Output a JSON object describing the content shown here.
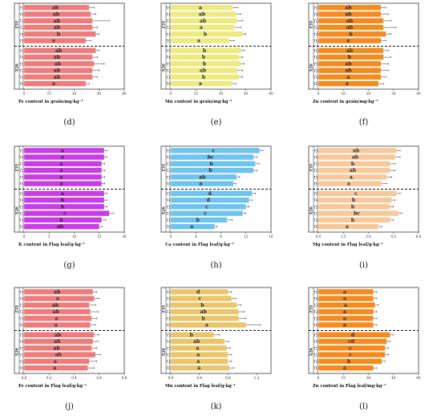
{
  "chart_data": [
    {
      "type": "bar",
      "panel_label": "(d)",
      "xlabel": "Fe content in grain/mg·kg⁻¹",
      "color": "#f07b7b",
      "xlim": [
        0,
        60
      ],
      "xticks": [
        0,
        15,
        30,
        45,
        60
      ],
      "groups": [
        {
          "name": "Z35",
          "treatments": [
            "T5",
            "T4",
            "T3",
            "T2",
            "T1",
            "T0"
          ],
          "values": [
            39,
            40,
            41,
            41,
            43,
            37
          ],
          "errors": [
            3,
            3,
            10,
            3,
            2,
            3
          ],
          "letters": [
            "ab",
            "ab",
            "ab",
            "ab",
            "b",
            "a"
          ]
        },
        {
          "name": "X26",
          "treatments": [
            "T5",
            "T4",
            "T3",
            "T2",
            "T1",
            "T0"
          ],
          "values": [
            43,
            41,
            42,
            41,
            41,
            37
          ],
          "errors": [
            2,
            3,
            6,
            4,
            3,
            2
          ],
          "letters": [
            "ab",
            "ab",
            "ab",
            "ab",
            "ab",
            "a"
          ]
        }
      ]
    },
    {
      "type": "bar",
      "panel_label": "(e)",
      "xlabel": "Mn content in grain/mg·kg⁻¹",
      "color": "#eeea80",
      "xlim": [
        0,
        60
      ],
      "xticks": [
        0,
        15,
        30,
        45,
        60
      ],
      "groups": [
        {
          "name": "Z35",
          "treatments": [
            "T5",
            "T4",
            "T3",
            "T2",
            "T1",
            "T0"
          ],
          "values": [
            37,
            39,
            40,
            38,
            43,
            35
          ],
          "errors": [
            3,
            3,
            3,
            4,
            2,
            3
          ],
          "letters": [
            "a",
            "ab",
            "ab",
            "a",
            "b",
            "a"
          ]
        },
        {
          "name": "X26",
          "treatments": [
            "T5",
            "T4",
            "T3",
            "T2",
            "T1",
            "T0"
          ],
          "values": [
            42,
            41,
            42,
            40,
            41,
            37
          ],
          "errors": [
            2,
            2,
            2,
            3,
            2,
            2
          ],
          "letters": [
            "b",
            "b",
            "b",
            "ab",
            "b",
            "a"
          ]
        }
      ]
    },
    {
      "type": "bar",
      "panel_label": "(f)",
      "xlabel": "Zn content in grain/mg·kg⁻¹",
      "color": "#f58b1e",
      "xlim": [
        0,
        40
      ],
      "xticks": [
        0,
        10,
        20,
        30,
        40
      ],
      "groups": [
        {
          "name": "Z35",
          "treatments": [
            "T5",
            "T4",
            "T3",
            "T2",
            "T1",
            "T0"
          ],
          "values": [
            25,
            25,
            26,
            26,
            27,
            25
          ],
          "errors": [
            2,
            3,
            3,
            5,
            2,
            2
          ],
          "letters": [
            "ab",
            "ab",
            "ab",
            "ab",
            "b",
            "a"
          ]
        },
        {
          "name": "X26",
          "treatments": [
            "T5",
            "T4",
            "T3",
            "T2",
            "T1",
            "T0"
          ],
          "values": [
            26,
            26,
            25,
            25,
            25,
            24
          ],
          "errors": [
            2,
            3,
            3,
            3,
            2,
            2
          ],
          "letters": [
            "ab",
            "b",
            "ab",
            "ab",
            "a",
            "a"
          ]
        }
      ]
    },
    {
      "type": "bar",
      "panel_label": "(g)",
      "xlabel": "K content in Flag leaf/g·kg⁻¹",
      "color": "#c83de6",
      "xlim": [
        0,
        20
      ],
      "xticks": [
        0,
        5,
        10,
        15,
        20
      ],
      "groups": [
        {
          "name": "Z35",
          "treatments": [
            "T5",
            "T4",
            "T3",
            "T2",
            "T1",
            "T0"
          ],
          "values": [
            16,
            16,
            15.5,
            15.5,
            15.5,
            15.5
          ],
          "errors": [
            0.6,
            0.6,
            0.6,
            0.6,
            0.6,
            0.6
          ],
          "letters": [
            "a",
            "a",
            "a",
            "a",
            "a",
            "a"
          ]
        },
        {
          "name": "X26",
          "treatments": [
            "T5",
            "T4",
            "T3",
            "T2",
            "T1",
            "T0"
          ],
          "values": [
            16,
            16,
            16,
            17,
            15.5,
            15
          ],
          "errors": [
            0.6,
            0.6,
            0.6,
            0.8,
            0.8,
            0.6
          ],
          "letters": [
            "a",
            "b",
            "b",
            "c",
            "b",
            "ab"
          ]
        }
      ]
    },
    {
      "type": "bar",
      "panel_label": "(h)",
      "xlabel": "Ca content in Flag leaf/g·kg⁻¹",
      "color": "#6ec3f0",
      "xlim": [
        0,
        16
      ],
      "xticks": [
        0,
        4,
        8,
        12,
        16
      ],
      "groups": [
        {
          "name": "Z35",
          "treatments": [
            "T5",
            "T4",
            "T3",
            "T2",
            "T1",
            "T0"
          ],
          "values": [
            14.2,
            13.2,
            13.5,
            13.2,
            10.5,
            10
          ],
          "errors": [
            0.5,
            0.6,
            0.6,
            0.6,
            0.5,
            0.4
          ],
          "letters": [
            "c",
            "bc",
            "b",
            "b",
            "ab",
            "a"
          ]
        },
        {
          "name": "X26",
          "treatments": [
            "T5",
            "T4",
            "T3",
            "T2",
            "T1",
            "T0"
          ],
          "values": [
            13,
            12.5,
            12,
            11.5,
            9,
            7
          ],
          "errors": [
            0.5,
            0.5,
            0.5,
            0.5,
            0.8,
            0.4
          ],
          "letters": [
            "d",
            "d",
            "c",
            "c",
            "b",
            "a"
          ]
        }
      ]
    },
    {
      "type": "bar",
      "panel_label": "(i)",
      "xlabel": "Mg content in Flag leaf/g·kg⁻¹",
      "color": "#f8c89a",
      "xlim": [
        0,
        6
      ],
      "xticks": [
        0,
        1.5,
        3,
        4.5,
        6
      ],
      "xtick_labels": [
        "0.0",
        "1.5",
        "3.0",
        "4.5",
        "6.0"
      ],
      "groups": [
        {
          "name": "Z35",
          "treatments": [
            "T5",
            "T4",
            "T3",
            "T2",
            "T1",
            "T0"
          ],
          "values": [
            4.7,
            4.6,
            4.3,
            4.3,
            4.1,
            3.8
          ],
          "errors": [
            0.2,
            0.3,
            0.3,
            0.3,
            0.3,
            0.3
          ],
          "letters": [
            "ab",
            "ab",
            "b",
            "ab",
            "a",
            "a"
          ]
        },
        {
          "name": "X26",
          "treatments": [
            "T5",
            "T4",
            "T3",
            "T2",
            "T1",
            "T0"
          ],
          "values": [
            4.7,
            4.4,
            4.3,
            4.8,
            4.3,
            3.6
          ],
          "errors": [
            0.2,
            0.2,
            0.2,
            0.2,
            0.2,
            0.2
          ],
          "letters": [
            "c",
            "b",
            "b",
            "bc",
            "b",
            "a"
          ]
        }
      ]
    },
    {
      "type": "bar",
      "panel_label": "(j)",
      "xlabel": "Fe content in Flag leaf/g·kg⁻¹",
      "color": "#f07b7b",
      "xlim": [
        0,
        0.8
      ],
      "xticks": [
        0,
        0.2,
        0.4,
        0.6,
        0.8
      ],
      "xtick_labels": [
        "0.0",
        "0.2",
        "0.4",
        "0.6",
        "0.8"
      ],
      "groups": [
        {
          "name": "Z35",
          "treatments": [
            "T5",
            "T4",
            "T3",
            "T2",
            "T1",
            "T0"
          ],
          "values": [
            0.55,
            0.56,
            0.52,
            0.53,
            0.54,
            0.53
          ],
          "errors": [
            0.03,
            0.04,
            0.05,
            0.06,
            0.04,
            0.04
          ],
          "letters": [
            "ab",
            "a",
            "ab",
            "ab",
            "a",
            "a"
          ]
        },
        {
          "name": "X26",
          "treatments": [
            "T5",
            "T4",
            "T3",
            "T2",
            "T1",
            "T0"
          ],
          "values": [
            0.56,
            0.55,
            0.54,
            0.57,
            0.52,
            0.51
          ],
          "errors": [
            0.04,
            0.04,
            0.04,
            0.04,
            0.06,
            0.05
          ],
          "letters": [
            "ab",
            "ab",
            "ab",
            "ab",
            "a",
            "a"
          ]
        }
      ]
    },
    {
      "type": "bar",
      "panel_label": "(k)",
      "xlabel": "Mn content in Flag leaf/g·kg⁻¹",
      "color": "#ebc56a",
      "xlim": [
        0,
        1.4
      ],
      "xticks": [
        0,
        0.4,
        0.8,
        1.2
      ],
      "xtick_labels": [
        "0.0",
        "0.4",
        "0.8",
        "1.2"
      ],
      "groups": [
        {
          "name": "Z35",
          "treatments": [
            "T5",
            "T4",
            "T3",
            "T2",
            "T1",
            "T0"
          ],
          "values": [
            0.8,
            0.85,
            0.92,
            0.95,
            0.95,
            1.05
          ],
          "errors": [
            0.05,
            0.06,
            0.06,
            0.08,
            0.1,
            0.2
          ],
          "letters": [
            "d",
            "c",
            "b",
            "ab",
            "b",
            "a"
          ]
        },
        {
          "name": "X26",
          "treatments": [
            "T5",
            "T4",
            "T3",
            "T2",
            "T1",
            "T0"
          ],
          "values": [
            0.6,
            0.75,
            0.78,
            0.8,
            0.8,
            0.82
          ],
          "errors": [
            0.08,
            0.06,
            0.05,
            0.05,
            0.05,
            0.06
          ],
          "letters": [
            "b",
            "ab",
            "a",
            "a",
            "a",
            "a"
          ]
        }
      ]
    },
    {
      "type": "bar",
      "panel_label": "(l)",
      "xlabel": "Zn content in Flag leaf/mg·kg⁻¹",
      "color": "#f58b1e",
      "xlim": [
        0,
        60
      ],
      "xticks": [
        0,
        15,
        30,
        45,
        60
      ],
      "groups": [
        {
          "name": "Z35",
          "treatments": [
            "T5",
            "T4",
            "T3",
            "T2",
            "T1",
            "T0"
          ],
          "values": [
            33,
            33,
            34,
            33,
            33,
            33
          ],
          "errors": [
            2,
            2,
            2,
            2,
            2,
            2
          ],
          "letters": [
            "a",
            "a",
            "a",
            "a",
            "a",
            "a"
          ]
        },
        {
          "name": "X26",
          "treatments": [
            "T5",
            "T4",
            "T3",
            "T2",
            "T1",
            "T0"
          ],
          "values": [
            43,
            41,
            40,
            40,
            38,
            33
          ],
          "errors": [
            2,
            2,
            2,
            2,
            2,
            2
          ],
          "letters": [
            "d",
            "cd",
            "c",
            "c",
            "b",
            "a"
          ]
        }
      ]
    }
  ]
}
